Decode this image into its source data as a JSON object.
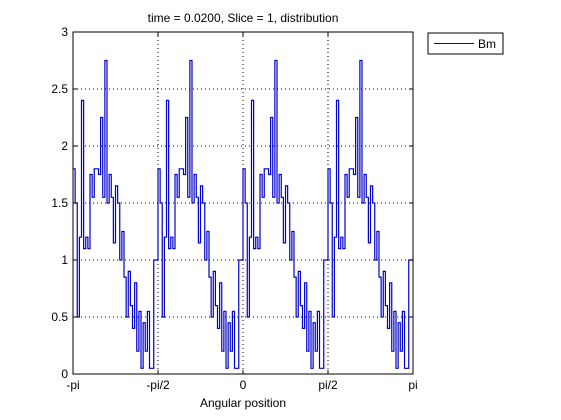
{
  "chart_data": {
    "type": "line",
    "title": "time = 0.0200, Slice = 1, distribution",
    "xlabel": "Angular position",
    "ylabel": "",
    "xlim": [
      -3.14159,
      3.14159
    ],
    "ylim": [
      0,
      3
    ],
    "xticks": [
      {
        "value": -3.14159,
        "label": "-pi"
      },
      {
        "value": -1.5708,
        "label": "-pi/2"
      },
      {
        "value": 0,
        "label": "0"
      },
      {
        "value": 1.5708,
        "label": "pi/2"
      },
      {
        "value": 3.14159,
        "label": "pi"
      }
    ],
    "yticks": [
      {
        "value": 0,
        "label": "0"
      },
      {
        "value": 0.5,
        "label": "0.5"
      },
      {
        "value": 1,
        "label": "1"
      },
      {
        "value": 1.5,
        "label": "1.5"
      },
      {
        "value": 2,
        "label": "2"
      },
      {
        "value": 2.5,
        "label": "2.5"
      },
      {
        "value": 3,
        "label": "3"
      }
    ],
    "grid": true,
    "legend_position": "outside-top-right",
    "series": [
      {
        "name": "Bm",
        "color": "#0000cc",
        "style": "step",
        "period_start": -3.14159,
        "period_length": 1.5708,
        "periods": 4,
        "y_one_period": [
          1.8,
          1.5,
          0.5,
          1.2,
          2.4,
          1.1,
          1.2,
          1.1,
          1.75,
          1.55,
          1.8,
          1.8,
          1.75,
          2.25,
          1.55,
          2.75,
          1.5,
          1.75,
          1.55,
          1.15,
          1.65,
          1.5,
          1.0,
          1.25,
          0.85,
          0.5,
          0.9,
          0.6,
          0.4,
          0.8,
          0.2,
          0.55,
          0.05,
          0.45,
          0.2,
          0.55,
          0.05,
          0.05,
          1.0,
          1.0
        ]
      }
    ]
  }
}
